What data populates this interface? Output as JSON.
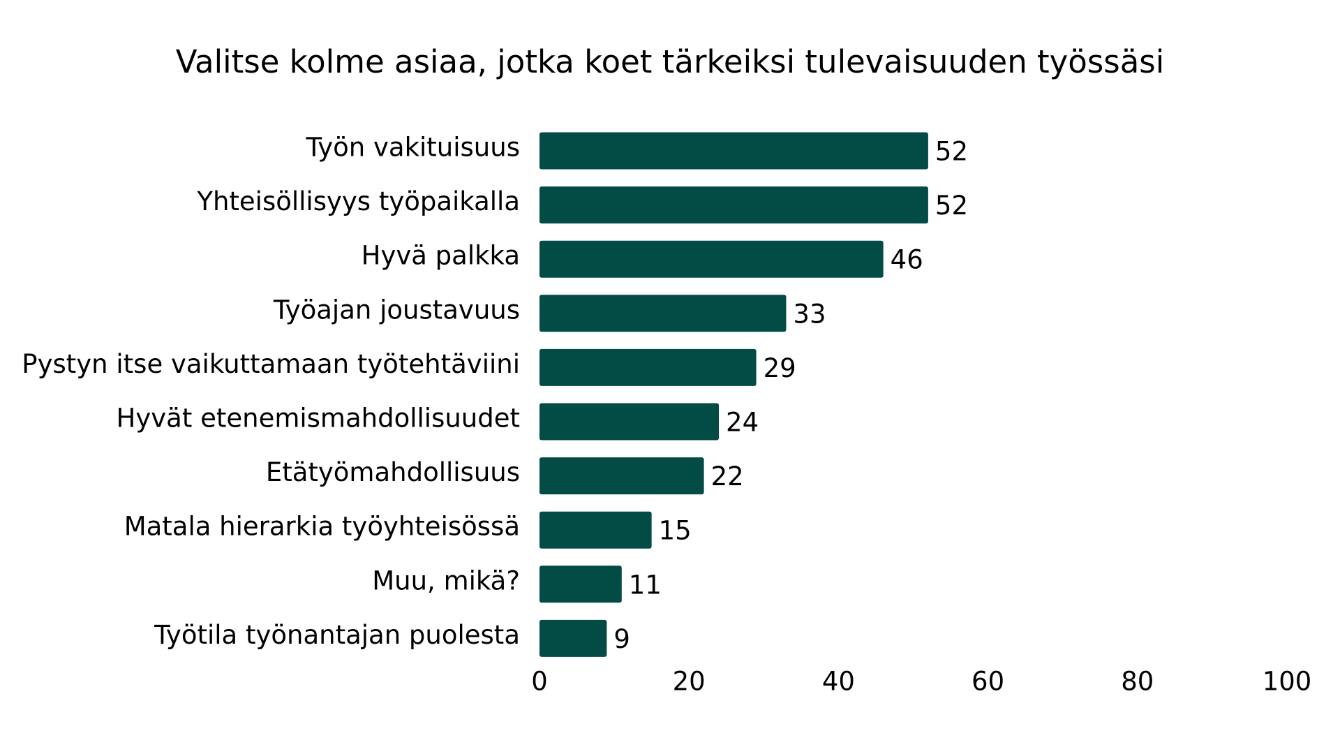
{
  "chart_data": {
    "type": "bar",
    "orientation": "horizontal",
    "title": "Valitse kolme asiaa, jotka koet tärkeiksi tulevaisuuden työssäsi",
    "categories": [
      "Työn vakituisuus",
      "Yhteisöllisyys työpaikalla",
      "Hyvä palkka",
      "Työajan joustavuus",
      "Pystyn itse vaikuttamaan työtehtäviini",
      "Hyvät etenemismahdollisuudet",
      "Etätyömahdollisuus",
      "Matala hierarkia työyhteisössä",
      "Muu, mikä?",
      "Työtila työnantajan puolesta"
    ],
    "values": [
      52,
      52,
      46,
      33,
      29,
      24,
      22,
      15,
      11,
      9
    ],
    "xlim": [
      0,
      100
    ],
    "xticks": [
      0,
      20,
      40,
      60,
      80,
      100
    ],
    "xlabel": "",
    "ylabel": "",
    "grid": false,
    "legend": "none",
    "bar_color": "#034b45",
    "data_labels": true
  }
}
